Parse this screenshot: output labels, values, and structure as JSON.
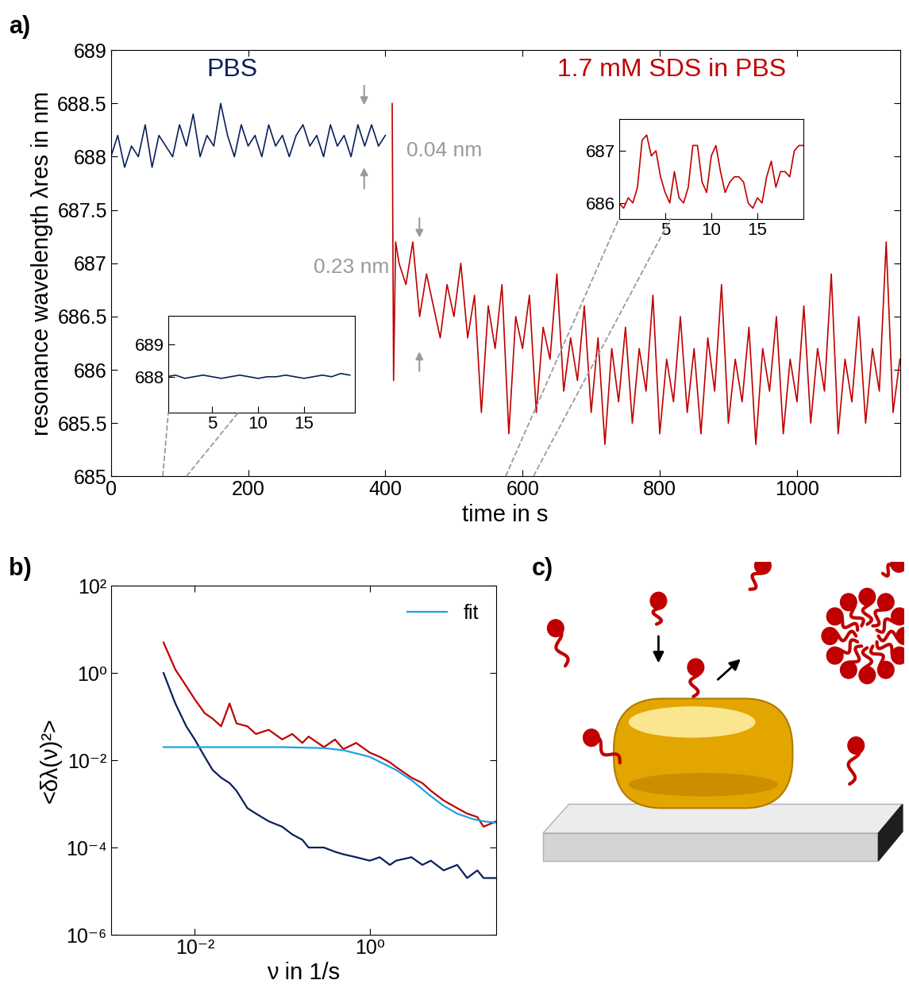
{
  "chart_data": [
    {
      "type": "line",
      "panel_label": "a)",
      "xlabel": "time in s",
      "ylabel": "resonance wavelength λres in nm",
      "xlim": [
        0,
        1150
      ],
      "ylim": [
        685,
        689
      ],
      "xticks": [
        0,
        200,
        400,
        600,
        800,
        1000
      ],
      "yticks": [
        685,
        685.5,
        686,
        686.5,
        687,
        687.5,
        688,
        688.5,
        689
      ],
      "annotations": [
        "0.04 nm",
        "0.23 nm"
      ],
      "series": [
        {
          "name": "PBS",
          "color": "#0a1f5c",
          "x": [
            0,
            10,
            20,
            30,
            40,
            50,
            60,
            70,
            80,
            90,
            100,
            110,
            120,
            130,
            140,
            150,
            160,
            170,
            180,
            190,
            200,
            210,
            220,
            230,
            240,
            250,
            260,
            270,
            280,
            290,
            300,
            310,
            320,
            330,
            340,
            350,
            360,
            370,
            380,
            390,
            400
          ],
          "values": [
            688.0,
            688.2,
            687.9,
            688.1,
            688.0,
            688.3,
            687.9,
            688.2,
            688.1,
            688.0,
            688.3,
            688.1,
            688.4,
            688.0,
            688.2,
            688.1,
            688.5,
            688.2,
            688.0,
            688.3,
            688.1,
            688.2,
            688.0,
            688.3,
            688.1,
            688.2,
            688.0,
            688.2,
            688.3,
            688.1,
            688.2,
            688.0,
            688.3,
            688.1,
            688.2,
            688.0,
            688.3,
            688.1,
            688.3,
            688.1,
            688.2
          ]
        },
        {
          "name": "1.7 mM SDS in PBS",
          "color": "#c00000",
          "x": [
            410,
            412,
            415,
            420,
            430,
            440,
            450,
            460,
            470,
            480,
            490,
            500,
            510,
            520,
            530,
            540,
            550,
            560,
            570,
            580,
            590,
            600,
            610,
            620,
            630,
            640,
            650,
            660,
            670,
            680,
            690,
            700,
            710,
            720,
            730,
            740,
            750,
            760,
            770,
            780,
            790,
            800,
            810,
            820,
            830,
            840,
            850,
            860,
            870,
            880,
            890,
            900,
            910,
            920,
            930,
            940,
            950,
            960,
            970,
            980,
            990,
            1000,
            1010,
            1020,
            1030,
            1040,
            1050,
            1060,
            1070,
            1080,
            1090,
            1100,
            1110,
            1120,
            1130,
            1140,
            1150
          ],
          "values": [
            688.5,
            685.9,
            687.2,
            687.0,
            686.8,
            687.2,
            686.5,
            686.9,
            686.6,
            686.3,
            686.8,
            686.5,
            687.0,
            686.3,
            686.7,
            685.6,
            686.6,
            686.2,
            686.8,
            685.4,
            686.5,
            686.2,
            686.7,
            685.6,
            686.4,
            686.1,
            686.9,
            685.8,
            686.3,
            685.9,
            686.6,
            685.6,
            686.3,
            685.3,
            686.2,
            685.7,
            686.4,
            685.5,
            686.2,
            685.8,
            686.7,
            685.4,
            686.1,
            685.7,
            686.5,
            685.6,
            686.2,
            685.4,
            686.3,
            685.8,
            686.8,
            685.5,
            686.1,
            685.7,
            686.4,
            685.3,
            686.2,
            685.8,
            686.5,
            685.4,
            686.1,
            685.7,
            686.6,
            685.5,
            686.2,
            685.8,
            686.9,
            685.4,
            686.1,
            685.7,
            686.5,
            685.5,
            686.2,
            685.8,
            687.2,
            685.6,
            686.1
          ]
        }
      ],
      "insets": [
        {
          "type": "line",
          "color": "#0a1f5c",
          "xlim": [
            0.2,
            20.5
          ],
          "ylim": [
            686.9,
            689.9
          ],
          "xticks": [
            5,
            10,
            15
          ],
          "yticks": [
            688,
            689
          ],
          "x": [
            0,
            1,
            2,
            3,
            4,
            5,
            6,
            7,
            8,
            9,
            10,
            11,
            12,
            13,
            14,
            15,
            16,
            17,
            18,
            19,
            20
          ],
          "values": [
            688.0,
            688.05,
            687.95,
            688.0,
            688.05,
            688.0,
            687.95,
            688.0,
            688.05,
            688.0,
            687.95,
            688.0,
            688.0,
            688.05,
            688.0,
            687.95,
            688.0,
            688.05,
            688.0,
            688.1,
            688.05
          ]
        },
        {
          "type": "line",
          "color": "#c00000",
          "xlim": [
            0,
            20
          ],
          "ylim": [
            685.7,
            687.6
          ],
          "xticks": [
            5,
            10,
            15
          ],
          "yticks": [
            686,
            687
          ],
          "x": [
            0,
            0.5,
            1,
            1.5,
            2,
            2.5,
            3,
            3.5,
            4,
            4.5,
            5,
            5.5,
            6,
            6.5,
            7,
            7.5,
            8,
            8.5,
            9,
            9.5,
            10,
            10.5,
            11,
            11.5,
            12,
            12.5,
            13,
            13.5,
            14,
            14.5,
            15,
            15.5,
            16,
            16.5,
            17,
            17.5,
            18,
            18.5,
            19,
            19.5,
            20
          ],
          "values": [
            686.0,
            685.9,
            686.1,
            686.0,
            686.3,
            687.2,
            687.3,
            686.9,
            687.0,
            686.5,
            686.2,
            686.0,
            686.6,
            686.1,
            686.0,
            686.3,
            687.1,
            687.1,
            686.4,
            686.2,
            686.9,
            687.1,
            686.6,
            686.2,
            686.4,
            686.5,
            686.5,
            686.4,
            686.0,
            685.9,
            686.1,
            686.0,
            686.5,
            686.8,
            686.3,
            686.6,
            686.6,
            686.5,
            687.0,
            687.1,
            687.1
          ]
        }
      ]
    },
    {
      "type": "line",
      "panel_label": "b)",
      "log": true,
      "legend": "upper right",
      "xlabel": "ν in 1/s",
      "ylabel": "<δλ(ν)²>",
      "xlim": [
        0.0011,
        28
      ],
      "ylim": [
        1e-06,
        100
      ],
      "xticks": [
        {
          "value": 0.01,
          "label": "10⁻²"
        },
        {
          "value": 1,
          "label": "10⁰"
        }
      ],
      "yticks": [
        {
          "value": 1e-06,
          "label": "10⁻⁶"
        },
        {
          "value": 0.0001,
          "label": "10⁻⁴"
        },
        {
          "value": 0.01,
          "label": "10⁻²"
        },
        {
          "value": 1,
          "label": "10⁰"
        },
        {
          "value": 100,
          "label": "10²"
        }
      ],
      "series": [
        {
          "color": "#c00000",
          "x": [
            0.0044,
            0.006,
            0.008,
            0.01,
            0.013,
            0.016,
            0.02,
            0.025,
            0.03,
            0.04,
            0.05,
            0.07,
            0.1,
            0.13,
            0.17,
            0.2,
            0.3,
            0.4,
            0.5,
            0.7,
            1,
            1.3,
            1.7,
            2,
            3,
            4,
            5,
            7,
            10,
            13,
            17,
            20,
            28
          ],
          "values": [
            5,
            1.2,
            0.5,
            0.25,
            0.12,
            0.09,
            0.06,
            0.2,
            0.07,
            0.06,
            0.04,
            0.05,
            0.03,
            0.04,
            0.025,
            0.035,
            0.02,
            0.03,
            0.018,
            0.025,
            0.015,
            0.012,
            0.009,
            0.007,
            0.004,
            0.003,
            0.002,
            0.0012,
            0.0008,
            0.0006,
            0.0005,
            0.0003,
            0.0004
          ]
        },
        {
          "color": "#0a1f5c",
          "x": [
            0.0044,
            0.006,
            0.008,
            0.01,
            0.013,
            0.016,
            0.02,
            0.025,
            0.03,
            0.04,
            0.05,
            0.07,
            0.1,
            0.13,
            0.17,
            0.2,
            0.3,
            0.4,
            0.5,
            0.7,
            1,
            1.3,
            1.7,
            2,
            3,
            4,
            5,
            7,
            10,
            13,
            17,
            20,
            28
          ],
          "values": [
            1,
            0.2,
            0.06,
            0.03,
            0.012,
            0.006,
            0.004,
            0.003,
            0.002,
            0.0008,
            0.0006,
            0.0004,
            0.0003,
            0.0002,
            0.00015,
            0.0001,
            0.0001,
            8e-05,
            7e-05,
            6e-05,
            5e-05,
            6e-05,
            4e-05,
            5e-05,
            6e-05,
            4e-05,
            5e-05,
            3e-05,
            4e-05,
            2e-05,
            3e-05,
            2e-05,
            2e-05
          ]
        },
        {
          "name": "fit",
          "color": "#1aa3e8",
          "x": [
            0.0044,
            0.1,
            0.3,
            0.5,
            1,
            2,
            3,
            5,
            7,
            10,
            15,
            20,
            28
          ],
          "values": [
            0.02,
            0.02,
            0.019,
            0.017,
            0.012,
            0.006,
            0.0035,
            0.0015,
            0.0009,
            0.0006,
            0.00045,
            0.0004,
            0.00037
          ]
        }
      ]
    }
  ],
  "diagram": {
    "panel_label": "c)"
  }
}
